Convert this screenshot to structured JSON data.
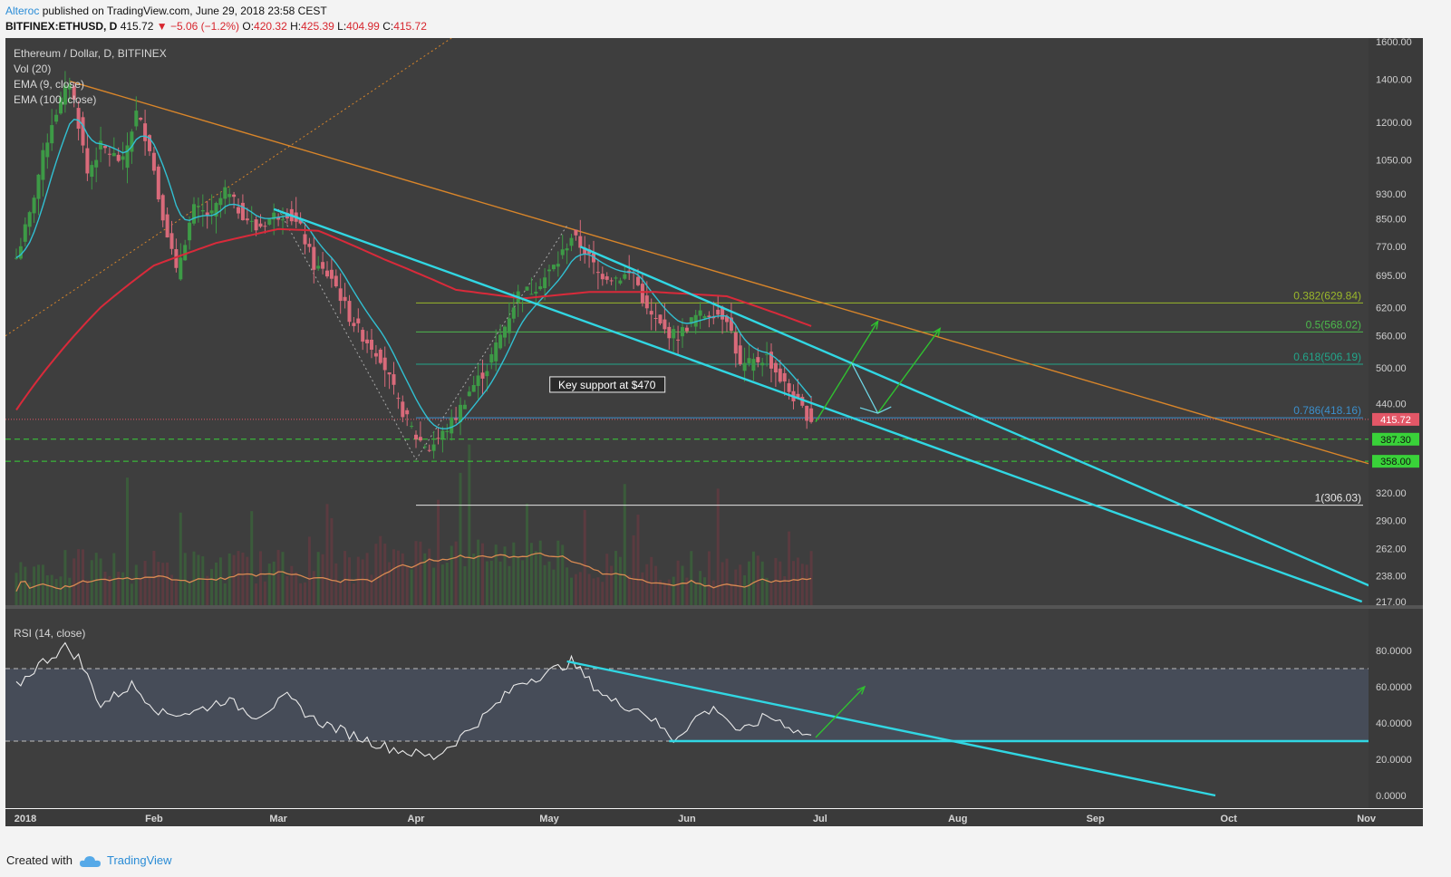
{
  "header": {
    "author": "Alteroc",
    "published": "published on TradingView.com, June 29, 2018 23:58 CEST",
    "symbol": "BITFINEX:ETHUSD, D",
    "last": "415.72",
    "change": "−5.06 (−1.2%)",
    "o_label": "O:",
    "o": "420.32",
    "h_label": "H:",
    "h": "425.39",
    "l_label": "L:",
    "l": "404.99",
    "c_label": "C:",
    "c": "415.72"
  },
  "indicators": {
    "title": "Ethereum / Dollar, D, BITFINEX",
    "vol": "Vol (20)",
    "ema9": "EMA (9, close)",
    "ema100": "EMA (100, close)",
    "rsi": "RSI (14, close)"
  },
  "annotation": "Key support at $470",
  "footer": {
    "created": "Created with",
    "brand": "TradingView"
  },
  "colors": {
    "pane_bg": "#3e3e3e",
    "up": "#3d9a46",
    "down": "#d96a7a",
    "ema9": "#31c0d2",
    "ema100": "#d92a3a",
    "trend_orange": "#d8852a",
    "channel": "#31d7e3",
    "fib_0382": "#9ab72b",
    "fib_05": "#4cb84c",
    "fib_0618": "#22a58a",
    "fib_0786": "#3b8fcc",
    "fib_1": "#e6e6e6",
    "support": "#39d239",
    "price_tag": "#e35767",
    "rsi_line": "#e9e9e9",
    "rsi_band": "#464c58",
    "arrow": "#30c030"
  },
  "chart_data": [
    {
      "type": "candlestick",
      "title": "Ethereum / Dollar, D, BITFINEX",
      "scale": "log",
      "ylim": [
        217,
        1600
      ],
      "price_ticks": [
        1600,
        1400,
        1200,
        1050,
        930,
        850,
        770,
        695,
        620,
        560,
        500,
        440,
        387.3,
        358,
        320,
        290,
        262,
        238,
        217
      ],
      "price_tick_labels": [
        "1600.00",
        "1400.00",
        "1200.00",
        "1050.00",
        "930.00",
        "850.00",
        "770.00",
        "695.00",
        "620.00",
        "560.00",
        "500.00",
        "440.00",
        "387.30",
        "358.00",
        "320.00",
        "290.00",
        "262.00",
        "238.00",
        "217.00"
      ],
      "x_labels": [
        "2018",
        "Feb",
        "Mar",
        "Apr",
        "May",
        "Jun",
        "Jul",
        "Aug",
        "Sep",
        "Oct",
        "Nov"
      ],
      "x_label_dates": [
        "2018-01-01",
        "2018-02-01",
        "2018-03-01",
        "2018-04-01",
        "2018-05-01",
        "2018-06-01",
        "2018-07-01",
        "2018-08-01",
        "2018-09-01",
        "2018-10-01",
        "2018-11-01"
      ],
      "last_price": 415.72,
      "last_price_label": "415.72",
      "price_keypoints": [
        [
          "2018-01-01",
          740
        ],
        [
          "2018-01-04",
          860
        ],
        [
          "2018-01-09",
          1200
        ],
        [
          "2018-01-13",
          1390
        ],
        [
          "2018-01-17",
          1000
        ],
        [
          "2018-01-20",
          1100
        ],
        [
          "2018-01-25",
          1040
        ],
        [
          "2018-01-28",
          1240
        ],
        [
          "2018-01-31",
          1100
        ],
        [
          "2018-02-02",
          920
        ],
        [
          "2018-02-06",
          700
        ],
        [
          "2018-02-10",
          880
        ],
        [
          "2018-02-14",
          860
        ],
        [
          "2018-02-17",
          940
        ],
        [
          "2018-02-20",
          880
        ],
        [
          "2018-02-24",
          820
        ],
        [
          "2018-02-28",
          860
        ],
        [
          "2018-03-03",
          870
        ],
        [
          "2018-03-06",
          820
        ],
        [
          "2018-03-09",
          720
        ],
        [
          "2018-03-13",
          690
        ],
        [
          "2018-03-17",
          600
        ],
        [
          "2018-03-20",
          560
        ],
        [
          "2018-03-24",
          520
        ],
        [
          "2018-03-28",
          440
        ],
        [
          "2018-04-01",
          390
        ],
        [
          "2018-04-04",
          375
        ],
        [
          "2018-04-07",
          395
        ],
        [
          "2018-04-10",
          420
        ],
        [
          "2018-04-13",
          460
        ],
        [
          "2018-04-17",
          500
        ],
        [
          "2018-04-21",
          580
        ],
        [
          "2018-04-24",
          650
        ],
        [
          "2018-04-27",
          660
        ],
        [
          "2018-04-30",
          690
        ],
        [
          "2018-05-03",
          730
        ],
        [
          "2018-05-06",
          800
        ],
        [
          "2018-05-09",
          760
        ],
        [
          "2018-05-12",
          700
        ],
        [
          "2018-05-16",
          690
        ],
        [
          "2018-05-20",
          700
        ],
        [
          "2018-05-23",
          610
        ],
        [
          "2018-05-27",
          570
        ],
        [
          "2018-05-30",
          560
        ],
        [
          "2018-06-03",
          600
        ],
        [
          "2018-06-07",
          610
        ],
        [
          "2018-06-10",
          600
        ],
        [
          "2018-06-13",
          500
        ],
        [
          "2018-06-16",
          510
        ],
        [
          "2018-06-19",
          520
        ],
        [
          "2018-06-22",
          480
        ],
        [
          "2018-06-25",
          450
        ],
        [
          "2018-06-27",
          430
        ],
        [
          "2018-06-29",
          415.72
        ]
      ],
      "ema100_keypoints": [
        [
          "2018-01-01",
          430
        ],
        [
          "2018-01-10",
          520
        ],
        [
          "2018-01-20",
          620
        ],
        [
          "2018-02-01",
          720
        ],
        [
          "2018-02-15",
          780
        ],
        [
          "2018-03-01",
          820
        ],
        [
          "2018-03-10",
          815
        ],
        [
          "2018-03-25",
          735
        ],
        [
          "2018-04-10",
          660
        ],
        [
          "2018-04-25",
          640
        ],
        [
          "2018-05-10",
          655
        ],
        [
          "2018-05-25",
          655
        ],
        [
          "2018-06-10",
          645
        ],
        [
          "2018-06-29",
          580
        ]
      ],
      "fibonacci": [
        {
          "level": "0.382",
          "value": 629.84,
          "label": "0.382(629.84)"
        },
        {
          "level": "0.5",
          "value": 568.02,
          "label": "0.5(568.02)"
        },
        {
          "level": "0.618",
          "value": 506.19,
          "label": "0.618(506.19)"
        },
        {
          "level": "0.786",
          "value": 418.16,
          "label": "0.786(418.16)"
        },
        {
          "level": "1",
          "value": 306.03,
          "label": "1(306.03)"
        }
      ],
      "supports": [
        {
          "value": 387.3,
          "label": "387.30"
        },
        {
          "value": 358.0,
          "label": "358.00"
        }
      ],
      "annotation": {
        "text": "Key support at $470",
        "date": "2018-05-14",
        "price": 470
      }
    },
    {
      "type": "line",
      "title": "RSI (14, close)",
      "ylim": [
        0,
        90
      ],
      "y_ticks": [
        80,
        60,
        40,
        20,
        0
      ],
      "y_tick_labels": [
        "80.0000",
        "60.0000",
        "40.0000",
        "20.0000",
        "0.0000"
      ],
      "bands": [
        70,
        30
      ],
      "keypoints": [
        [
          "2018-01-01",
          60
        ],
        [
          "2018-01-06",
          72
        ],
        [
          "2018-01-12",
          82
        ],
        [
          "2018-01-15",
          76
        ],
        [
          "2018-01-20",
          50
        ],
        [
          "2018-01-27",
          61
        ],
        [
          "2018-02-03",
          45
        ],
        [
          "2018-02-10",
          46
        ],
        [
          "2018-02-17",
          53
        ],
        [
          "2018-02-24",
          44
        ],
        [
          "2018-03-03",
          54
        ],
        [
          "2018-03-09",
          42
        ],
        [
          "2018-03-17",
          34
        ],
        [
          "2018-03-25",
          27
        ],
        [
          "2018-04-01",
          23
        ],
        [
          "2018-04-05",
          21
        ],
        [
          "2018-04-10",
          30
        ],
        [
          "2018-04-17",
          45
        ],
        [
          "2018-04-24",
          62
        ],
        [
          "2018-05-01",
          68
        ],
        [
          "2018-05-06",
          74
        ],
        [
          "2018-05-10",
          63
        ],
        [
          "2018-05-15",
          52
        ],
        [
          "2018-05-22",
          47
        ],
        [
          "2018-05-29",
          31
        ],
        [
          "2018-06-04",
          45
        ],
        [
          "2018-06-08",
          48
        ],
        [
          "2018-06-13",
          34
        ],
        [
          "2018-06-19",
          44
        ],
        [
          "2018-06-23",
          40
        ],
        [
          "2018-06-26",
          35
        ],
        [
          "2018-06-29",
          33
        ]
      ]
    }
  ]
}
